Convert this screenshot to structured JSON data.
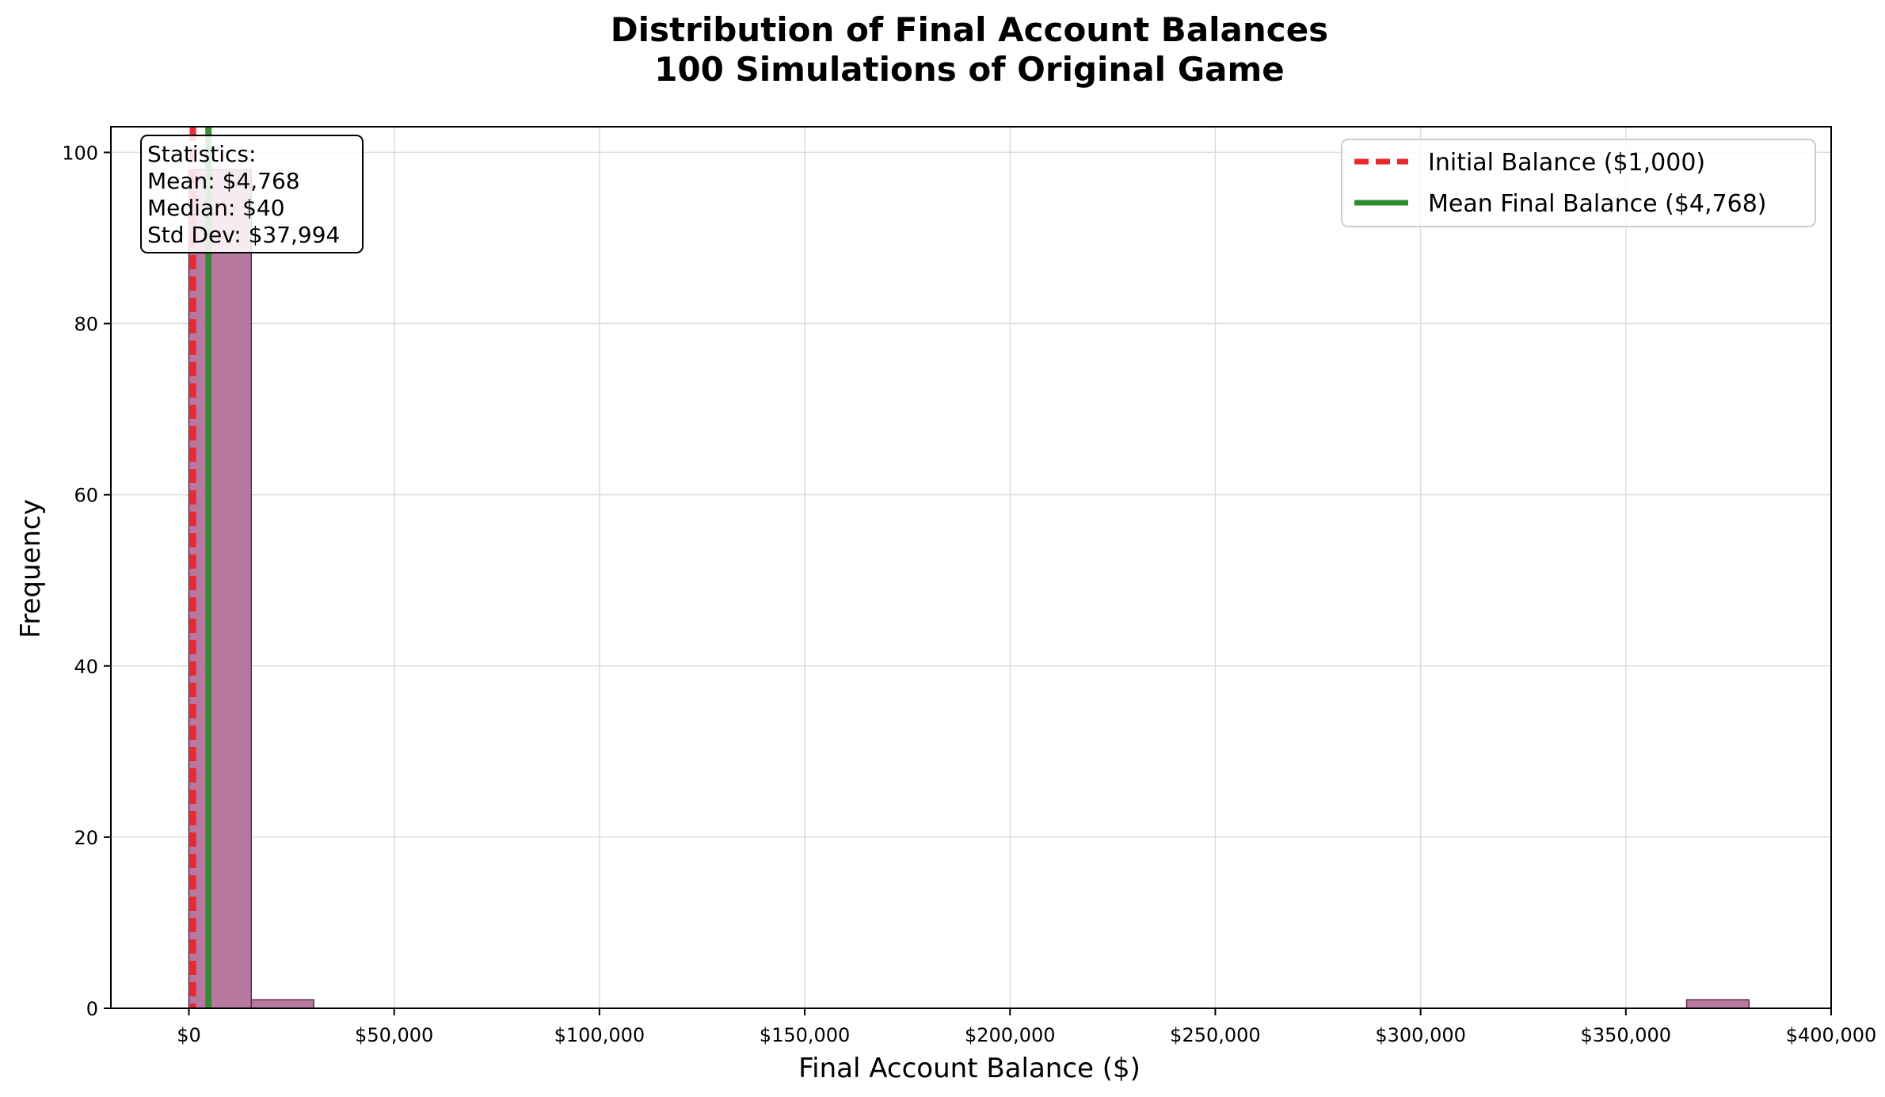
{
  "chart_data": {
    "type": "histogram",
    "title_line1": "Distribution of Final Account Balances",
    "title_line2": "100 Simulations of Original Game",
    "xlabel": "Final Account Balance ($)",
    "ylabel": "Frequency",
    "xlim": [
      -19000,
      400000
    ],
    "ylim": [
      0,
      103
    ],
    "x_ticks": [
      0,
      50000,
      100000,
      150000,
      200000,
      250000,
      300000,
      350000,
      400000
    ],
    "x_tick_labels": [
      "$0",
      "$50,000",
      "$100,000",
      "$150,000",
      "$200,000",
      "$250,000",
      "$300,000",
      "$350,000",
      "$400,000"
    ],
    "y_ticks": [
      0,
      20,
      40,
      60,
      80,
      100
    ],
    "y_tick_labels": [
      "0",
      "20",
      "40",
      "60",
      "80",
      "100"
    ],
    "bins": [
      {
        "x0": 0,
        "x1": 15200,
        "count": 98
      },
      {
        "x0": 15200,
        "x1": 30400,
        "count": 1
      },
      {
        "x0": 364800,
        "x1": 380000,
        "count": 1
      }
    ],
    "bar_color": "#b06a96",
    "bar_edge_color": "#5a3050",
    "grid": true,
    "reference_lines": [
      {
        "name": "Initial Balance ($1,000)",
        "x": 1000,
        "color": "#e8262b",
        "style": "dashed"
      },
      {
        "name": "Mean Final Balance ($4,768)",
        "x": 4768,
        "color": "#2e8b2e",
        "style": "solid"
      }
    ],
    "legend_position": "top-right",
    "stats": {
      "header": "Statistics:",
      "mean": "Mean: $4,768",
      "median": "Median: $40",
      "std": "Std Dev: $37,994"
    }
  }
}
